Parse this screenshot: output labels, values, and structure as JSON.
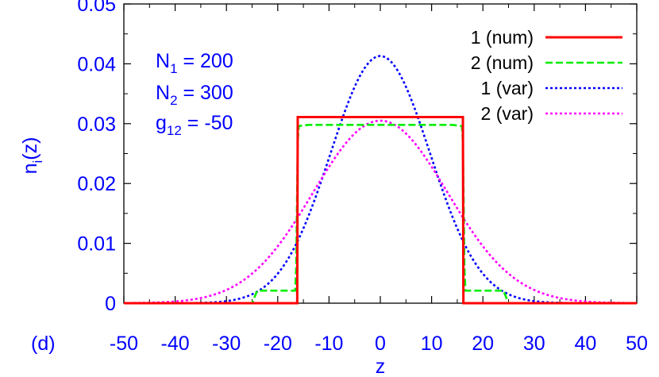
{
  "colors": {
    "text_blue": "#0000ff",
    "axis": "#000000",
    "background": "#ffffff"
  },
  "chart_data": {
    "type": "line",
    "xlabel": "z",
    "ylabel_main": "n",
    "ylabel_sub": "i",
    "ylabel_tail": "(z)",
    "xlim": [
      -50,
      50
    ],
    "ylim": [
      0,
      0.05
    ],
    "x_ticks": [
      {
        "value": -50,
        "label": "-50"
      },
      {
        "value": -40,
        "label": "-40"
      },
      {
        "value": -30,
        "label": "-30"
      },
      {
        "value": -20,
        "label": "-20"
      },
      {
        "value": -10,
        "label": "-10"
      },
      {
        "value": 0,
        "label": "0"
      },
      {
        "value": 10,
        "label": "10"
      },
      {
        "value": 20,
        "label": "20"
      },
      {
        "value": 30,
        "label": "30"
      },
      {
        "value": 40,
        "label": "40"
      },
      {
        "value": 50,
        "label": "50"
      }
    ],
    "y_ticks": [
      {
        "value": 0,
        "label": "0"
      },
      {
        "value": 0.01,
        "label": "0.01"
      },
      {
        "value": 0.02,
        "label": "0.02"
      },
      {
        "value": 0.03,
        "label": "0.03"
      },
      {
        "value": 0.04,
        "label": "0.04"
      },
      {
        "value": 0.05,
        "label": "0.05"
      }
    ],
    "grid": false,
    "legend_position": "top-right",
    "panel_label": "(d)",
    "annotations": [
      {
        "main": "N",
        "sub": "1",
        "rest": " = 200"
      },
      {
        "main": "N",
        "sub": "2",
        "rest": " = 300"
      },
      {
        "main": "g",
        "sub": "12",
        "rest": " = -50"
      }
    ],
    "series": [
      {
        "name": "1 (num)",
        "color": "#ff0000",
        "dash": "solid",
        "x": [
          -50,
          -25,
          -16.2,
          -16.1,
          0,
          16.1,
          16.2,
          25,
          50
        ],
        "y": [
          0,
          0,
          0,
          0.0311,
          0.0311,
          0.0311,
          0,
          0,
          0
        ]
      },
      {
        "name": "2 (num)",
        "color": "#00ee00",
        "dash": "dashed",
        "x": [
          -50,
          -25,
          -24,
          -16.6,
          -16.4,
          -16.1,
          -15.9,
          -14,
          0,
          14,
          15.9,
          16.1,
          16.4,
          16.6,
          24,
          25,
          50
        ],
        "y": [
          0,
          0,
          0.0021,
          0.0021,
          0.006,
          0.027,
          0.0296,
          0.0298,
          0.0298,
          0.0298,
          0.0296,
          0.027,
          0.006,
          0.0021,
          0.0021,
          0,
          0
        ]
      },
      {
        "name": "1 (var)",
        "color": "#0000ff",
        "dash": "dotted",
        "gaussian": {
          "amplitude": 0.0413,
          "sigma": 9.7
        },
        "x_range": [
          -50,
          50
        ]
      },
      {
        "name": "2 (var)",
        "color": "#ff00ff",
        "dash": "dotted",
        "gaussian": {
          "amplitude": 0.0305,
          "sigma": 13.1
        },
        "x_range": [
          -50,
          50
        ]
      }
    ]
  }
}
